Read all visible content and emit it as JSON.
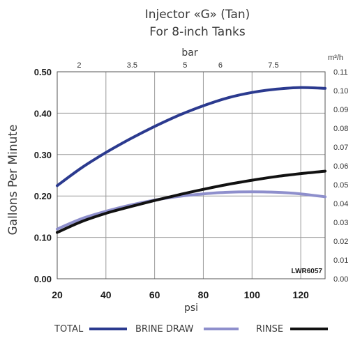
{
  "chart_data": {
    "type": "line",
    "title": "Injector «G» (Tan)",
    "subtitle": "For 8-inch Tanks",
    "xlabel": "psi",
    "ylabel": "Gallons Per Minute",
    "xlim": [
      20,
      130
    ],
    "ylim": [
      0,
      0.5
    ],
    "x_ticks": [
      "20",
      "40",
      "60",
      "80",
      "100",
      "120"
    ],
    "y_ticks": [
      "0.00",
      "0.10",
      "0.20",
      "0.30",
      "0.40",
      "0.50"
    ],
    "secondary_x": {
      "label": "bar",
      "ticks": [
        "2",
        "3.5",
        "5",
        "6",
        "7.5"
      ]
    },
    "secondary_y": {
      "label": "m³/h",
      "ticks": [
        "0.00",
        "0.01",
        "0.02",
        "0.03",
        "0.04",
        "0.05",
        "0.06",
        "0.07",
        "0.08",
        "0.09",
        "0.10",
        "0.11"
      ]
    },
    "annotation": "LWR6057",
    "grid": true,
    "legend_position": "bottom",
    "series": [
      {
        "name": "TOTAL",
        "color": "#2b3a8f",
        "x": [
          20,
          30,
          40,
          50,
          60,
          70,
          80,
          90,
          100,
          110,
          120,
          130
        ],
        "y": [
          0.225,
          0.268,
          0.305,
          0.338,
          0.368,
          0.395,
          0.418,
          0.437,
          0.45,
          0.458,
          0.462,
          0.46
        ]
      },
      {
        "name": "BRINE DRAW",
        "color": "#8e8fcc",
        "x": [
          20,
          30,
          40,
          50,
          60,
          70,
          80,
          90,
          100,
          110,
          120,
          130
        ],
        "y": [
          0.12,
          0.145,
          0.163,
          0.178,
          0.19,
          0.199,
          0.205,
          0.209,
          0.21,
          0.209,
          0.205,
          0.198
        ]
      },
      {
        "name": "RINSE",
        "color": "#111111",
        "x": [
          20,
          30,
          40,
          50,
          60,
          70,
          80,
          90,
          100,
          110,
          120,
          130
        ],
        "y": [
          0.112,
          0.138,
          0.158,
          0.174,
          0.189,
          0.203,
          0.216,
          0.228,
          0.238,
          0.247,
          0.254,
          0.26
        ]
      }
    ]
  }
}
